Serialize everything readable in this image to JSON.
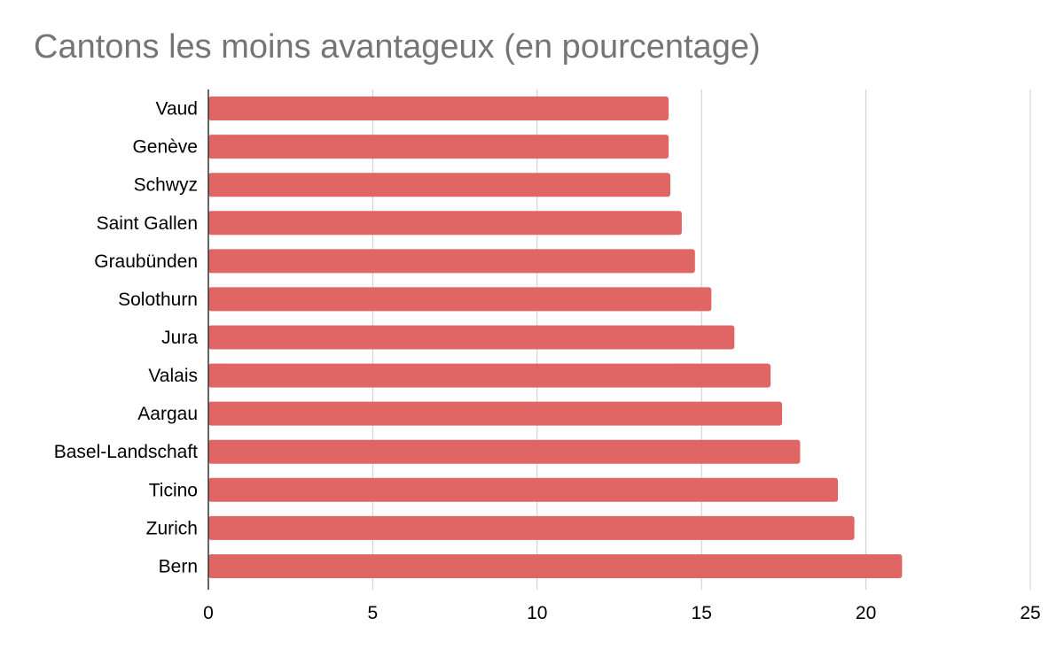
{
  "chart_data": {
    "type": "bar",
    "orientation": "horizontal",
    "title": "Cantons les moins avantageux (en pourcentage)",
    "xlabel": "",
    "ylabel": "",
    "categories": [
      "Vaud",
      "Genève",
      "Schwyz",
      "Saint Gallen",
      "Graubünden",
      "Solothurn",
      "Jura",
      "Valais",
      "Aargau",
      "Basel-Landschaft",
      "Ticino",
      "Zurich",
      "Bern"
    ],
    "values": [
      14.0,
      14.0,
      14.05,
      14.4,
      14.8,
      15.3,
      16.0,
      17.1,
      17.45,
      18.0,
      19.15,
      19.65,
      21.1
    ],
    "xlim": [
      0,
      25
    ],
    "xticks": [
      "0",
      "5",
      "10",
      "15",
      "20",
      "25"
    ],
    "grid": true,
    "legend": "none",
    "bar_color": "#e06666",
    "grid_color": "#cccccc",
    "axis_color": "#333333",
    "title_color": "#757575"
  }
}
